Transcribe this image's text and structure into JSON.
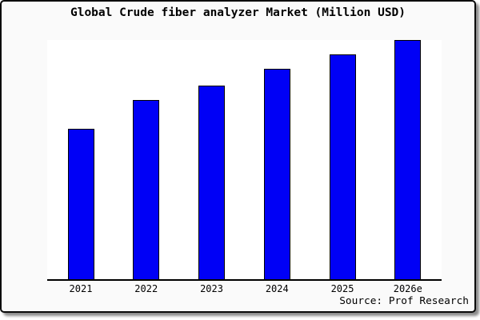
{
  "title": "Global Crude fiber analyzer Market (Million USD)",
  "source": "Source: Prof Research",
  "colors": {
    "bar_fill": "#0000f6",
    "bar_border": "#000000",
    "frame_background": "#fafafa",
    "plot_background": "#ffffff",
    "axis": "#000000",
    "frame_border": "#0a0a0a"
  },
  "chart_data": {
    "type": "bar",
    "title": "Global Crude fiber analyzer Market (Million USD)",
    "categories": [
      "2021",
      "2022",
      "2023",
      "2024",
      "2025",
      "2026e"
    ],
    "values": [
      63,
      75,
      81,
      88,
      94,
      100
    ],
    "values_note": "No y-axis scale is shown in the chart; values are relative bar heights with 2026e = 100",
    "xlabel": "",
    "ylabel": "",
    "ylim": [
      0,
      100
    ],
    "grid": false,
    "legend": "none",
    "source": "Source: Prof Research"
  }
}
